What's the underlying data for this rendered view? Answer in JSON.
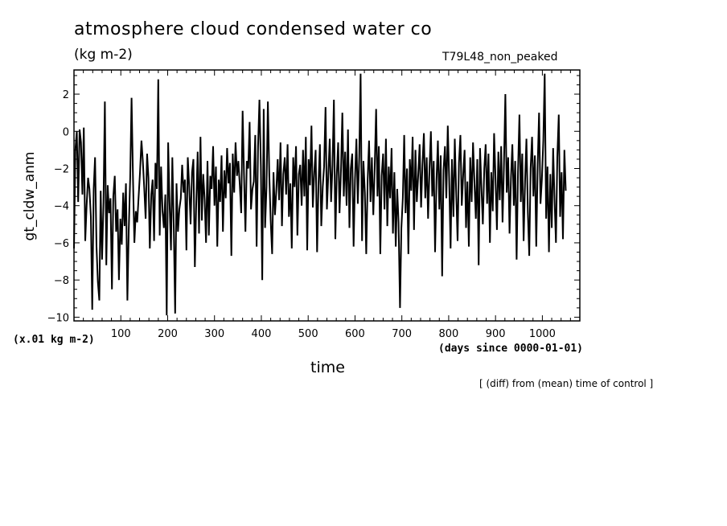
{
  "page": {
    "title": "atmosphere cloud condensed water co",
    "units": "(kg m-2)",
    "run_name": "T79L48_non_peaked",
    "scale_note": "(x.01 kg m-2)",
    "x_units": "(days since 0000-01-01)",
    "annotation": "[ (diff) from (mean) time of control ]"
  },
  "chart_data": {
    "type": "line",
    "title": "atmosphere cloud condensed water co",
    "subtitle": "(kg m-2)",
    "xlabel": "time",
    "ylabel": "gt_cldw_anm",
    "xlim": [
      0,
      1080
    ],
    "ylim": [
      -10.2,
      3.3
    ],
    "x_ticks": [
      100,
      200,
      300,
      400,
      500,
      600,
      700,
      800,
      900,
      1000
    ],
    "x_tick_labels": [
      "100",
      "200",
      "300",
      "400",
      "500",
      "600",
      "700",
      "800",
      "900",
      "1000"
    ],
    "y_ticks": [
      2,
      0,
      -2,
      -4,
      -6,
      -8,
      -10
    ],
    "y_tick_labels": [
      "2",
      "0",
      "−2",
      "−4",
      "−6",
      "−8",
      "−10"
    ],
    "grid": false,
    "series": [
      {
        "name": "gt_cldw_anm",
        "x_start": 0,
        "x_step": 3,
        "values": [
          -6.3,
          -1.0,
          0.0,
          -3.8,
          0.1,
          -0.6,
          -3.4,
          0.2,
          -5.9,
          -4.0,
          -2.5,
          -3.1,
          -4.6,
          -9.6,
          -3.1,
          -1.4,
          -6.2,
          -8.1,
          -9.1,
          -3.2,
          -6.9,
          -3.8,
          1.6,
          -7.2,
          -2.9,
          -4.4,
          -3.6,
          -8.5,
          -3.5,
          -2.4,
          -5.4,
          -4.2,
          -8.0,
          -4.7,
          -6.1,
          -3.3,
          -5.1,
          -2.8,
          -9.1,
          -5.3,
          -2.5,
          1.8,
          -2.6,
          -6.0,
          -4.3,
          -4.9,
          -3.5,
          -2.2,
          -0.5,
          -1.6,
          -3.1,
          -4.7,
          -1.2,
          -2.5,
          -6.3,
          -3.4,
          -2.6,
          -5.9,
          -1.7,
          -3.1,
          2.8,
          -5.6,
          -1.9,
          -4.3,
          -5.2,
          -3.4,
          -9.9,
          -0.6,
          -3.8,
          -6.4,
          -1.4,
          -5.2,
          -9.8,
          -2.8,
          -5.4,
          -4.2,
          -3.6,
          -1.8,
          -3.3,
          -2.6,
          -6.4,
          -1.4,
          -3.0,
          -5.0,
          -2.2,
          -1.5,
          -7.3,
          -3.9,
          -1.1,
          -5.5,
          -0.3,
          -4.8,
          -2.3,
          -3.7,
          -6.0,
          -1.6,
          -5.6,
          -2.4,
          -3.1,
          -0.8,
          -4.0,
          -1.9,
          -6.2,
          -2.6,
          -3.8,
          -1.3,
          -5.4,
          -2.1,
          -3.6,
          -0.9,
          -2.8,
          -1.7,
          -6.7,
          -1.2,
          -3.3,
          -0.6,
          -2.4,
          -1.6,
          -2.9,
          -4.4,
          1.1,
          -2.3,
          -5.4,
          -1.6,
          -2.0,
          0.5,
          -4.2,
          -3.1,
          -2.7,
          -0.2,
          -6.2,
          -0.8,
          1.7,
          -1.9,
          -8.0,
          1.2,
          -5.2,
          -3.0,
          1.6,
          -2.4,
          -4.8,
          -6.6,
          -2.2,
          -4.5,
          -3.2,
          -1.5,
          -3.7,
          -0.6,
          -5.1,
          -2.3,
          -1.4,
          -3.4,
          -0.7,
          -4.6,
          -2.8,
          -6.3,
          -1.4,
          -3.0,
          -0.8,
          -5.6,
          -2.3,
          -1.8,
          -4.0,
          -1.0,
          -3.5,
          -0.3,
          -6.4,
          -1.5,
          -2.9,
          0.3,
          -4.1,
          -2.2,
          -1.0,
          -6.5,
          -2.9,
          -0.7,
          -5.1,
          -3.0,
          -1.9,
          1.3,
          -4.2,
          -2.4,
          -0.4,
          -3.8,
          -1.8,
          1.7,
          -5.8,
          -2.4,
          -0.6,
          -4.4,
          -2.1,
          1.0,
          -3.5,
          -1.1,
          -4.0,
          0.1,
          -5.2,
          -2.0,
          -1.2,
          -6.2,
          -2.6,
          -0.4,
          -3.9,
          -1.4,
          3.1,
          -5.9,
          -1.6,
          -3.3,
          -6.6,
          -2.6,
          -0.5,
          -3.8,
          -1.4,
          -4.5,
          -2.0,
          1.2,
          -3.5,
          -0.8,
          -6.6,
          -2.4,
          -1.2,
          -4.2,
          -0.4,
          -5.1,
          -1.9,
          -3.6,
          -0.9,
          -5.5,
          -2.2,
          -6.2,
          -3.1,
          -4.9,
          -9.5,
          -5.2,
          -3.6,
          -0.2,
          -4.4,
          -2.0,
          -6.6,
          -1.5,
          -3.2,
          -0.3,
          -5.3,
          -1.0,
          -3.8,
          -2.3,
          -0.7,
          -4.1,
          -1.8,
          -0.1,
          -3.6,
          -1.4,
          -4.7,
          -2.1,
          0.0,
          -3.5,
          -1.6,
          -6.5,
          -2.6,
          -0.5,
          -4.2,
          -1.3,
          -7.8,
          -2.1,
          -0.8,
          -3.6,
          0.3,
          -2.5,
          -6.3,
          -1.5,
          -4.6,
          -0.4,
          -3.2,
          -5.9,
          -1.7,
          -0.2,
          -4.0,
          -2.3,
          -1.0,
          -5.2,
          -2.7,
          -6.2,
          -1.4,
          -3.8,
          -0.6,
          -2.8,
          -4.7,
          -1.5,
          -7.2,
          -0.9,
          -3.1,
          -5.0,
          -2.0,
          -0.7,
          -3.9,
          -1.2,
          -6.0,
          -2.2,
          -4.3,
          -0.1,
          -2.6,
          -5.3,
          -1.1,
          -3.7,
          -0.8,
          -4.9,
          -1.9,
          2.0,
          -3.3,
          -1.4,
          -5.5,
          -2.5,
          -0.7,
          -4.0,
          -1.6,
          -6.9,
          -2.2,
          0.9,
          -3.8,
          -1.2,
          -5.9,
          -2.7,
          -0.4,
          -4.4,
          -6.7,
          -2.0,
          -0.3,
          -3.5,
          -1.3,
          -6.2,
          -1.8,
          1.0,
          -3.9,
          -2.6,
          -0.5,
          3.1,
          -4.7,
          -1.9,
          -6.5,
          -2.3,
          -5.2,
          -0.9,
          -3.6,
          -6.0,
          -1.4,
          0.9,
          -4.6,
          -2.2,
          -5.8,
          -1.0,
          -3.2
        ]
      }
    ]
  }
}
